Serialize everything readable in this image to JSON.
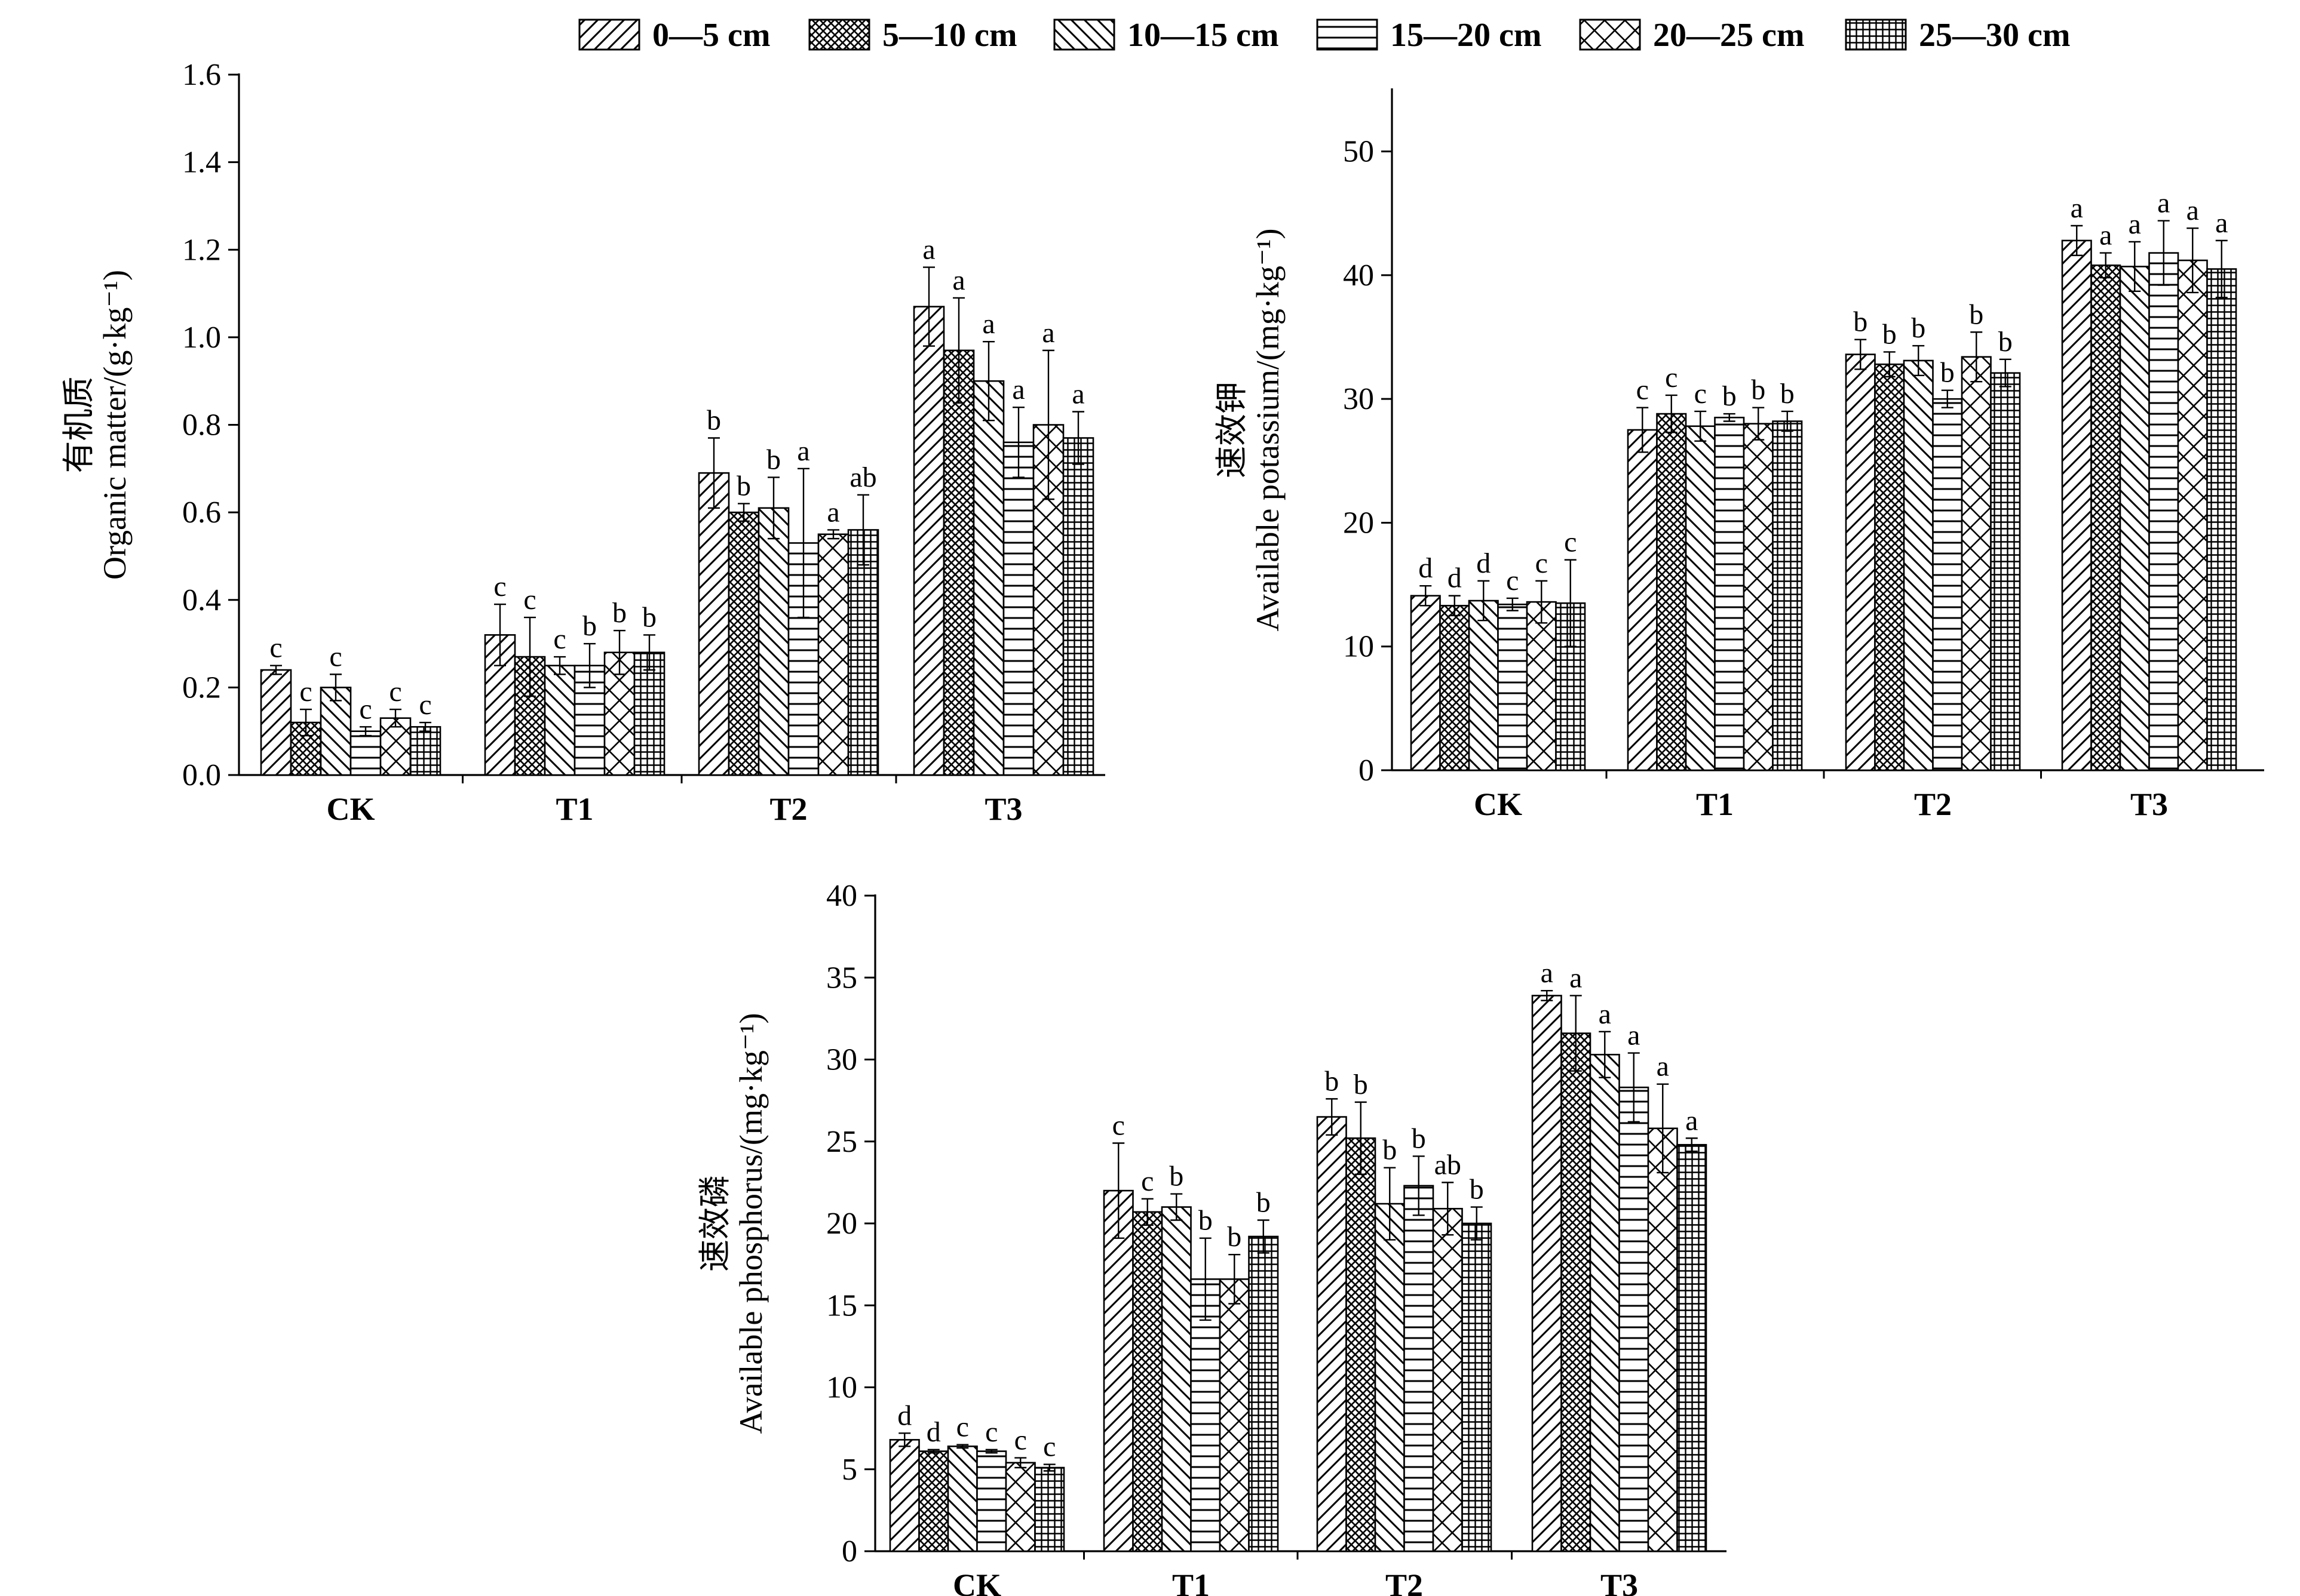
{
  "legend": {
    "placement": "top-center",
    "items": [
      {
        "label": "0—5 cm",
        "pattern": "diag-up"
      },
      {
        "label": "5—10 cm",
        "pattern": "cross-hatch"
      },
      {
        "label": "10—15 cm",
        "pattern": "diag-down"
      },
      {
        "label": "15—20 cm",
        "pattern": "horizontal"
      },
      {
        "label": "20—25 cm",
        "pattern": "diamond"
      },
      {
        "label": "25—30 cm",
        "pattern": "grid"
      }
    ]
  },
  "colors": {
    "ink": "#000000",
    "bar_fill": "#ffffff"
  },
  "chart_data": [
    {
      "id": "organic",
      "type": "bar",
      "title": "",
      "ylabel_cn": "有机质",
      "ylabel": "Organic matter/(g·kg⁻¹)",
      "xlabel": "",
      "categories": [
        "CK",
        "T1",
        "T2",
        "T3"
      ],
      "ylim": [
        0,
        1.6
      ],
      "yticks": [
        "0.0",
        "0.2",
        "0.4",
        "0.6",
        "0.8",
        "1.0",
        "1.2",
        "1.4",
        "1.6"
      ],
      "grid": false,
      "series": [
        {
          "name": "0—5 cm",
          "values": [
            0.24,
            0.32,
            0.69,
            1.07
          ],
          "errors": [
            0.01,
            0.07,
            0.08,
            0.09
          ],
          "labels": [
            "c",
            "c",
            "b",
            "a"
          ]
        },
        {
          "name": "5—10 cm",
          "values": [
            0.12,
            0.27,
            0.6,
            0.97
          ],
          "errors": [
            0.03,
            0.09,
            0.02,
            0.12
          ],
          "labels": [
            "c",
            "c",
            "b",
            "a"
          ]
        },
        {
          "name": "10—15 cm",
          "values": [
            0.2,
            0.25,
            0.61,
            0.9
          ],
          "errors": [
            0.03,
            0.02,
            0.07,
            0.09
          ],
          "labels": [
            "c",
            "c",
            "b",
            "a"
          ]
        },
        {
          "name": "15—20 cm",
          "values": [
            0.1,
            0.25,
            0.53,
            0.76
          ],
          "errors": [
            0.01,
            0.05,
            0.17,
            0.08
          ],
          "labels": [
            "c",
            "b",
            "a",
            "a"
          ]
        },
        {
          "name": "20—25 cm",
          "values": [
            0.13,
            0.28,
            0.55,
            0.8
          ],
          "errors": [
            0.02,
            0.05,
            0.01,
            0.17
          ],
          "labels": [
            "c",
            "b",
            "a",
            "a"
          ]
        },
        {
          "name": "25—30 cm",
          "values": [
            0.11,
            0.28,
            0.56,
            0.77
          ],
          "errors": [
            0.01,
            0.04,
            0.08,
            0.06
          ],
          "labels": [
            "c",
            "b",
            "ab",
            "a"
          ]
        }
      ]
    },
    {
      "id": "potassium",
      "type": "bar",
      "title": "",
      "ylabel_cn": "速效钾",
      "ylabel": "Available potassium/(mg·kg⁻¹)",
      "xlabel": "",
      "categories": [
        "CK",
        "T1",
        "T2",
        "T3"
      ],
      "ylim": [
        0,
        55
      ],
      "yticks": [
        "0",
        "10",
        "20",
        "30",
        "40",
        "50"
      ],
      "grid": false,
      "series": [
        {
          "name": "0—5 cm",
          "values": [
            14.1,
            27.5,
            33.6,
            42.8
          ],
          "errors": [
            0.8,
            1.8,
            1.2,
            1.2
          ],
          "labels": [
            "d",
            "c",
            "b",
            "a"
          ]
        },
        {
          "name": "5—10 cm",
          "values": [
            13.3,
            28.8,
            32.8,
            40.8
          ],
          "errors": [
            0.8,
            1.5,
            1.0,
            1.0
          ],
          "labels": [
            "d",
            "c",
            "b",
            "a"
          ]
        },
        {
          "name": "10—15 cm",
          "values": [
            13.7,
            27.8,
            33.1,
            40.7
          ],
          "errors": [
            1.6,
            1.2,
            1.2,
            2.0
          ],
          "labels": [
            "d",
            "c",
            "b",
            "a"
          ]
        },
        {
          "name": "15—20 cm",
          "values": [
            13.4,
            28.5,
            30.0,
            41.8
          ],
          "errors": [
            0.5,
            0.3,
            0.7,
            2.6
          ],
          "labels": [
            "c",
            "b",
            "b",
            "a"
          ]
        },
        {
          "name": "20—25 cm",
          "values": [
            13.6,
            28.0,
            33.4,
            41.2
          ],
          "errors": [
            1.7,
            1.3,
            2.0,
            2.6
          ],
          "labels": [
            "c",
            "b",
            "b",
            "a"
          ]
        },
        {
          "name": "25—30 cm",
          "values": [
            13.5,
            28.2,
            32.1,
            40.5
          ],
          "errors": [
            3.5,
            0.8,
            1.1,
            2.3
          ],
          "labels": [
            "c",
            "b",
            "b",
            "a"
          ]
        }
      ]
    },
    {
      "id": "phosphorus",
      "type": "bar",
      "title": "",
      "ylabel_cn": "速效磷",
      "ylabel": "Available phosphorus/(mg·kg⁻¹)",
      "xlabel": "",
      "categories": [
        "CK",
        "T1",
        "T2",
        "T3"
      ],
      "ylim": [
        0,
        40
      ],
      "yticks": [
        "0",
        "5",
        "10",
        "15",
        "20",
        "25",
        "30",
        "35",
        "40"
      ],
      "grid": false,
      "series": [
        {
          "name": "0—5 cm",
          "values": [
            6.8,
            22.0,
            26.5,
            33.9
          ],
          "errors": [
            0.4,
            2.9,
            1.1,
            0.3
          ],
          "labels": [
            "d",
            "c",
            "b",
            "a"
          ]
        },
        {
          "name": "5—10 cm",
          "values": [
            6.1,
            20.7,
            25.2,
            31.6
          ],
          "errors": [
            0.1,
            0.8,
            2.2,
            2.3
          ],
          "labels": [
            "d",
            "c",
            "b",
            "a"
          ]
        },
        {
          "name": "10—15 cm",
          "values": [
            6.4,
            21.0,
            21.2,
            30.3
          ],
          "errors": [
            0.1,
            0.8,
            2.2,
            1.4
          ],
          "labels": [
            "c",
            "b",
            "b",
            "a"
          ]
        },
        {
          "name": "15—20 cm",
          "values": [
            6.1,
            16.6,
            22.3,
            28.3
          ],
          "errors": [
            0.1,
            2.5,
            1.8,
            2.1
          ],
          "labels": [
            "c",
            "b",
            "b",
            "a"
          ]
        },
        {
          "name": "20—25 cm",
          "values": [
            5.4,
            16.6,
            20.9,
            25.8
          ],
          "errors": [
            0.3,
            1.5,
            1.6,
            2.7
          ],
          "labels": [
            "c",
            "b",
            "ab",
            "a"
          ]
        },
        {
          "name": "25—30 cm",
          "values": [
            5.1,
            19.2,
            20.0,
            24.8
          ],
          "errors": [
            0.2,
            1.0,
            1.0,
            0.4
          ],
          "labels": [
            "c",
            "b",
            "b",
            "a"
          ]
        }
      ]
    }
  ]
}
